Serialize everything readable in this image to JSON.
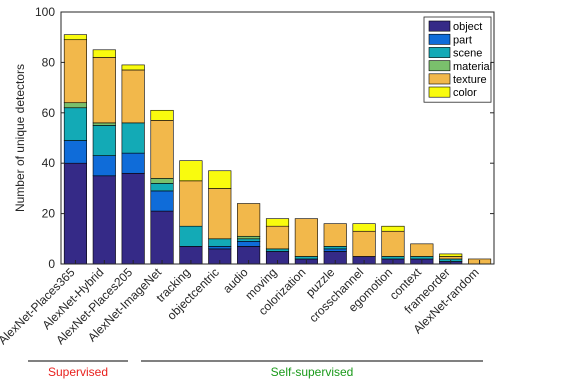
{
  "chart_data": {
    "type": "bar",
    "stacked": true,
    "title": "",
    "xlabel": "",
    "ylabel": "Number of unique detectors",
    "ylim": [
      0,
      100
    ],
    "yticks": [
      0,
      20,
      40,
      60,
      80,
      100
    ],
    "grid": false,
    "legend_position": "top-right",
    "categories": [
      "AlexNet-Places365",
      "AlexNet-Hybrid",
      "AlexNet-Places205",
      "AlexNet-ImageNet",
      "tracking",
      "objectcentric",
      "audio",
      "moving",
      "colorization",
      "puzzle",
      "crosschannel",
      "egomotion",
      "context",
      "frameorder",
      "AlexNet-random"
    ],
    "series": [
      {
        "name": "object",
        "color": "#352a87",
        "values": [
          40,
          35,
          36,
          21,
          7,
          6,
          7,
          5,
          2,
          5,
          3,
          2,
          2,
          1,
          0
        ]
      },
      {
        "name": "part",
        "color": "#0f6cd9",
        "values": [
          9,
          8,
          8,
          8,
          0,
          1,
          2,
          0,
          0,
          1,
          0,
          0,
          0,
          0,
          0
        ]
      },
      {
        "name": "scene",
        "color": "#13aab6",
        "values": [
          13,
          12,
          12,
          3,
          8,
          3,
          1,
          1,
          1,
          1,
          0,
          1,
          1,
          1,
          0
        ]
      },
      {
        "name": "material",
        "color": "#7ac06c",
        "values": [
          2,
          1,
          0,
          2,
          0,
          0,
          1,
          0,
          0,
          0,
          0,
          0,
          0,
          0,
          0
        ]
      },
      {
        "name": "texture",
        "color": "#f2b84b",
        "values": [
          25,
          26,
          21,
          23,
          18,
          20,
          13,
          9,
          15,
          9,
          10,
          10,
          5,
          1,
          2
        ]
      },
      {
        "name": "color",
        "color": "#f9fb0e",
        "values": [
          2,
          3,
          2,
          4,
          8,
          7,
          0,
          3,
          0,
          0,
          3,
          2,
          0,
          1,
          0
        ]
      }
    ],
    "groups": [
      {
        "label": "Supervised",
        "color": "#e8211e",
        "from": 0,
        "to": 3
      },
      {
        "label": "Self-supervised",
        "color": "#1a9a1a",
        "from": 4,
        "to": 14
      }
    ]
  }
}
